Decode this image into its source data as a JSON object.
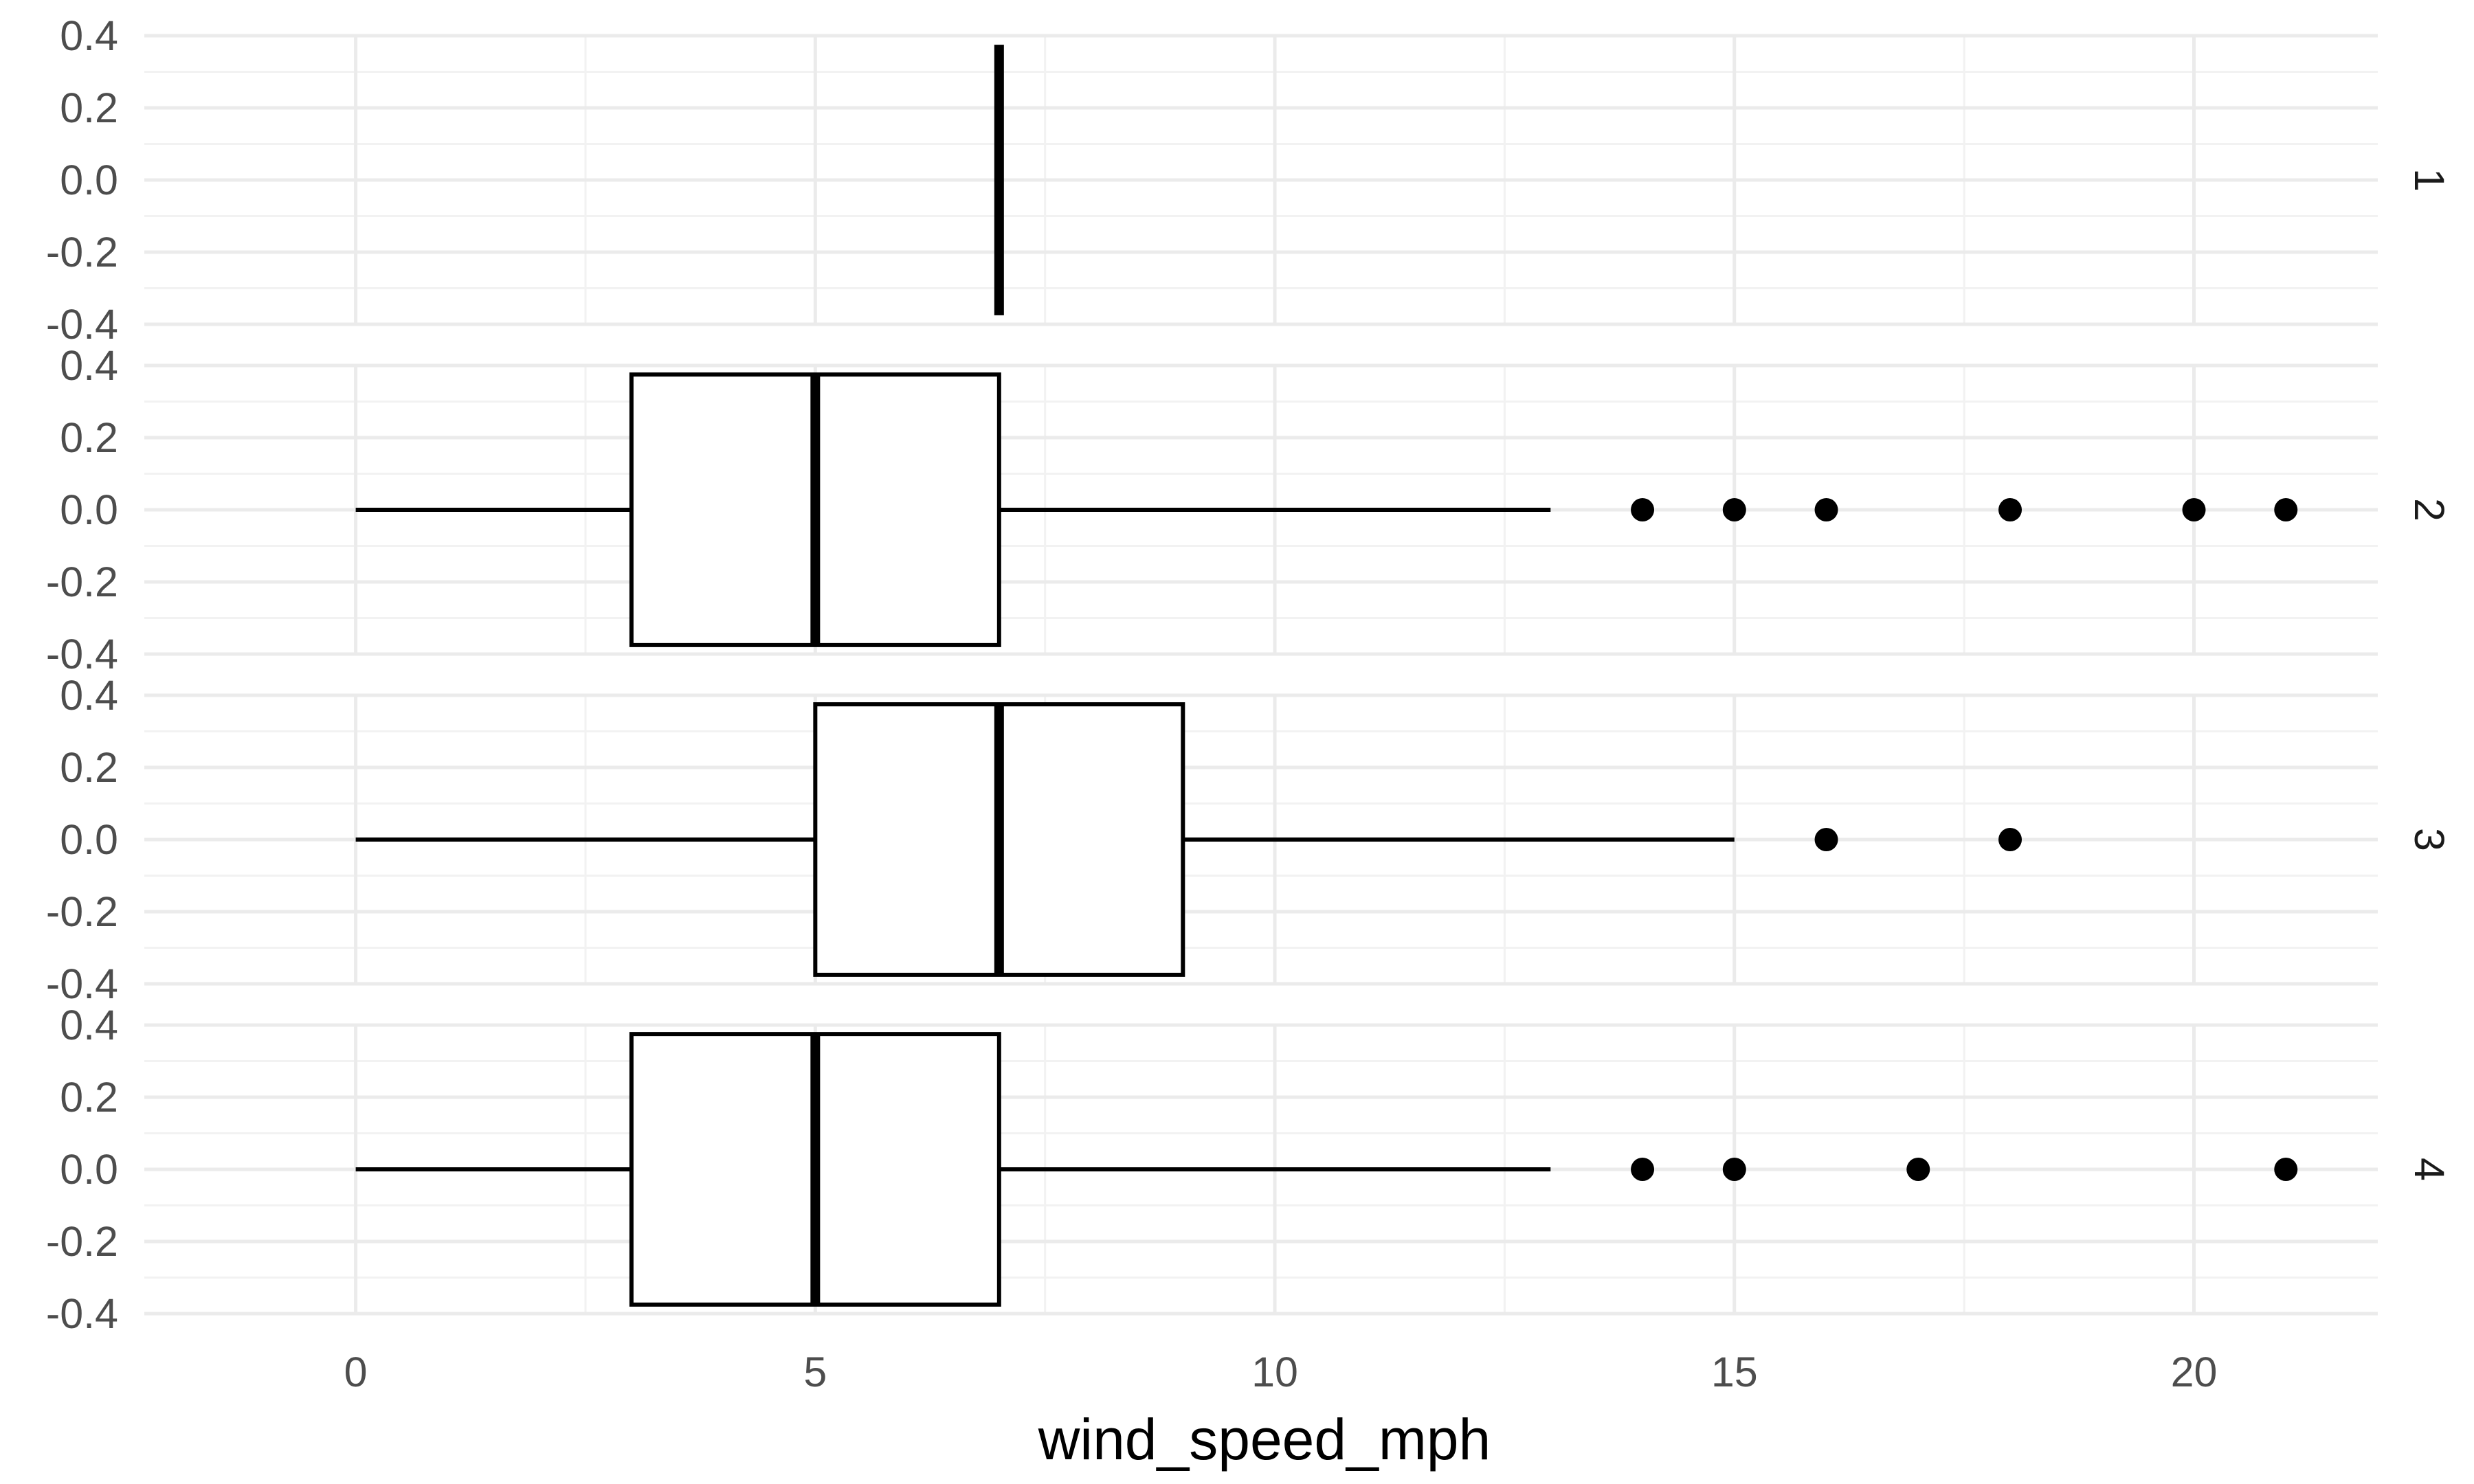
{
  "chart_data": {
    "type": "boxplot",
    "orientation": "horizontal",
    "facet": "rows",
    "xlabel": "wind_speed_mph",
    "ylabel": "",
    "xlim": [
      -2.3,
      22
    ],
    "ylim": [
      -0.4,
      0.4
    ],
    "x_ticks": [
      0,
      5,
      10,
      15,
      20
    ],
    "x_tick_labels": [
      "0",
      "5",
      "10",
      "15",
      "20"
    ],
    "y_ticks": [
      0.4,
      0.2,
      0.0,
      -0.2,
      -0.4
    ],
    "y_tick_labels": [
      "0.4",
      "0.2",
      "0.0",
      "-0.2",
      "-0.4"
    ],
    "grid": true,
    "theme": "minimal",
    "panels": [
      {
        "strip_label": "1",
        "min": 7,
        "q1": 7,
        "median": 7,
        "q3": 7,
        "max": 7,
        "outliers": []
      },
      {
        "strip_label": "2",
        "min": 0,
        "q1": 3,
        "median": 5,
        "q3": 7,
        "max": 13,
        "outliers": [
          14,
          15,
          16,
          18,
          20,
          21
        ]
      },
      {
        "strip_label": "3",
        "min": 0,
        "q1": 5,
        "median": 7,
        "q3": 9,
        "max": 15,
        "outliers": [
          16,
          18
        ]
      },
      {
        "strip_label": "4",
        "min": 0,
        "q1": 3,
        "median": 5,
        "q3": 7,
        "max": 13,
        "outliers": [
          14,
          15,
          17,
          21
        ]
      }
    ],
    "colors": {
      "background": "#ffffff",
      "grid_major": "#ebebeb",
      "grid_minor": "#f2f2f2",
      "box_fill": "#ffffff",
      "box_stroke": "#000000",
      "tick_text": "#4d4d4d",
      "title_text": "#000000"
    }
  }
}
